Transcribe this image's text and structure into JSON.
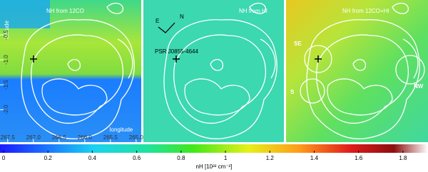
{
  "chart_data": {
    "type": "image",
    "panels": [
      {
        "title": "NH from 12CO"
      },
      {
        "title": "NH from HI"
      },
      {
        "title": "NH from 12CO+HI"
      }
    ],
    "xlabel": "longitude",
    "ylabel": "latitude",
    "xlim": [
      267.65,
      264.9
    ],
    "xticks": [
      {
        "value": 267.5,
        "label": "267.5"
      },
      {
        "value": 267,
        "label": "267.0"
      },
      266.5,
      {
        "value": 266,
        "label": "266.0"
      },
      265.5,
      {
        "value": 265,
        "label": "265.0"
      }
    ],
    "ylim": [
      0.2,
      -2.65
    ],
    "yticks": [
      -0.5,
      {
        "value": -1,
        "label": "-1.0"
      },
      -1.5,
      {
        "value": -2,
        "label": "-2.0"
      }
    ],
    "colorbar": {
      "label": "nH [10²² cm⁻²]",
      "lim": [
        0,
        1.9
      ],
      "ticks": [
        0,
        0.2,
        0.4,
        0.6,
        0.8,
        1,
        1.2,
        1.4,
        1.6,
        1.8
      ]
    },
    "annotations": {
      "compass_e": "E",
      "compass_n": "N",
      "pulsar": "PSR J0855-4644",
      "regions": [
        "SE",
        "S",
        "NW"
      ]
    }
  }
}
